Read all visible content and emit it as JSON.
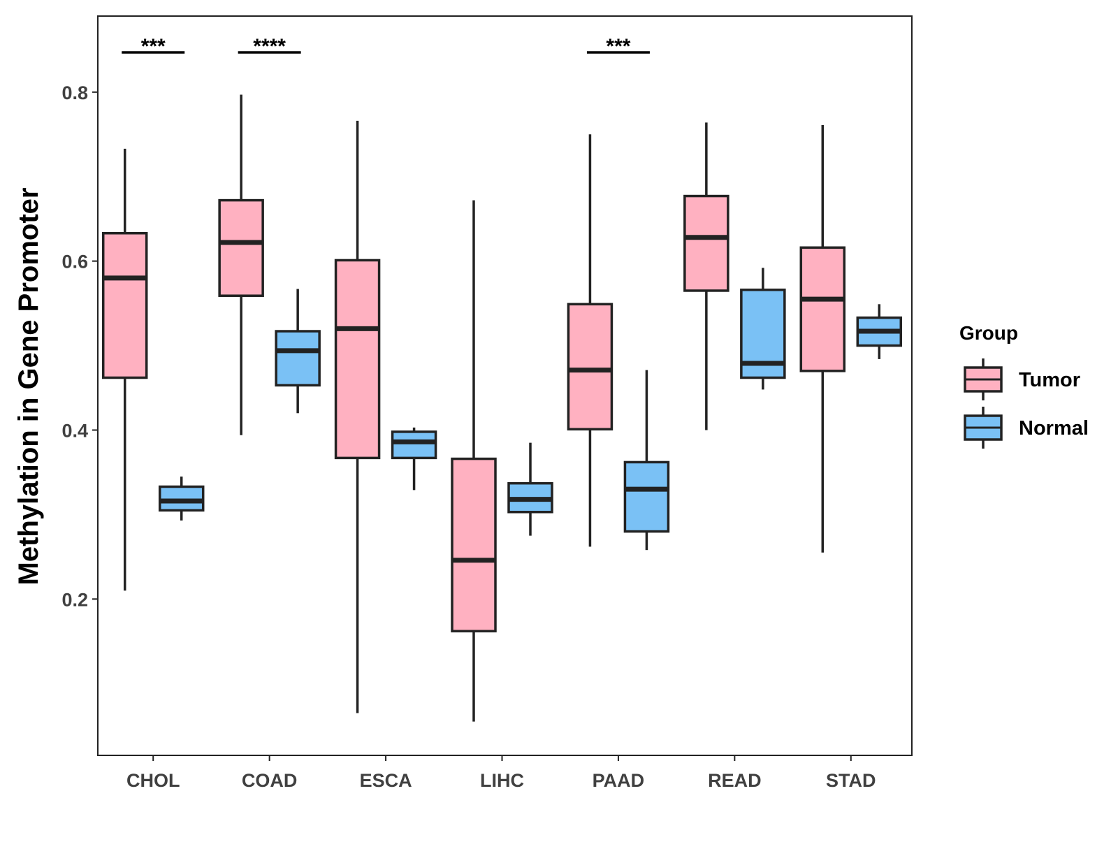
{
  "chart_data": {
    "type": "boxplot",
    "title": "",
    "xlabel": "",
    "ylabel": "Methylation in Gene Promoter",
    "ylim": [
      0.015,
      0.89
    ],
    "yticks": [
      0.2,
      0.4,
      0.6,
      0.8
    ],
    "ytick_labels": [
      "0.2",
      "0.4",
      "0.6",
      "0.8"
    ],
    "grid": false,
    "categories": [
      "CHOL",
      "COAD",
      "ESCA",
      "LIHC",
      "PAAD",
      "READ",
      "STAD"
    ],
    "legend": {
      "title": "Group",
      "position": "right",
      "entries": [
        "Tumor",
        "Normal"
      ]
    },
    "series": [
      {
        "name": "Tumor",
        "color": "#FFB1C1",
        "boxes": [
          {
            "category": "CHOL",
            "whisker_low": 0.21,
            "q1": 0.462,
            "median": 0.58,
            "q3": 0.633,
            "whisker_high": 0.733
          },
          {
            "category": "COAD",
            "whisker_low": 0.394,
            "q1": 0.559,
            "median": 0.622,
            "q3": 0.672,
            "whisker_high": 0.797
          },
          {
            "category": "ESCA",
            "whisker_low": 0.065,
            "q1": 0.367,
            "median": 0.52,
            "q3": 0.601,
            "whisker_high": 0.766
          },
          {
            "category": "LIHC",
            "whisker_low": 0.055,
            "q1": 0.162,
            "median": 0.246,
            "q3": 0.366,
            "whisker_high": 0.672
          },
          {
            "category": "PAAD",
            "whisker_low": 0.262,
            "q1": 0.401,
            "median": 0.471,
            "q3": 0.549,
            "whisker_high": 0.75
          },
          {
            "category": "READ",
            "whisker_low": 0.4,
            "q1": 0.565,
            "median": 0.628,
            "q3": 0.677,
            "whisker_high": 0.764
          },
          {
            "category": "STAD",
            "whisker_low": 0.255,
            "q1": 0.47,
            "median": 0.555,
            "q3": 0.616,
            "whisker_high": 0.761
          }
        ]
      },
      {
        "name": "Normal",
        "color": "#7AC1F5",
        "boxes": [
          {
            "category": "CHOL",
            "whisker_low": 0.293,
            "q1": 0.305,
            "median": 0.316,
            "q3": 0.333,
            "whisker_high": 0.345
          },
          {
            "category": "COAD",
            "whisker_low": 0.42,
            "q1": 0.453,
            "median": 0.494,
            "q3": 0.517,
            "whisker_high": 0.567
          },
          {
            "category": "ESCA",
            "whisker_low": 0.329,
            "q1": 0.367,
            "median": 0.386,
            "q3": 0.398,
            "whisker_high": 0.403
          },
          {
            "category": "LIHC",
            "whisker_low": 0.275,
            "q1": 0.303,
            "median": 0.318,
            "q3": 0.337,
            "whisker_high": 0.385
          },
          {
            "category": "PAAD",
            "whisker_low": 0.258,
            "q1": 0.28,
            "median": 0.33,
            "q3": 0.362,
            "whisker_high": 0.471
          },
          {
            "category": "READ",
            "whisker_low": 0.448,
            "q1": 0.462,
            "median": 0.479,
            "q3": 0.566,
            "whisker_high": 0.592
          },
          {
            "category": "STAD",
            "whisker_low": 0.484,
            "q1": 0.5,
            "median": 0.517,
            "q3": 0.533,
            "whisker_high": 0.549
          }
        ]
      }
    ],
    "significance": [
      {
        "category": "CHOL",
        "label": "***"
      },
      {
        "category": "COAD",
        "label": "****"
      },
      {
        "category": "PAAD",
        "label": "***"
      }
    ]
  }
}
